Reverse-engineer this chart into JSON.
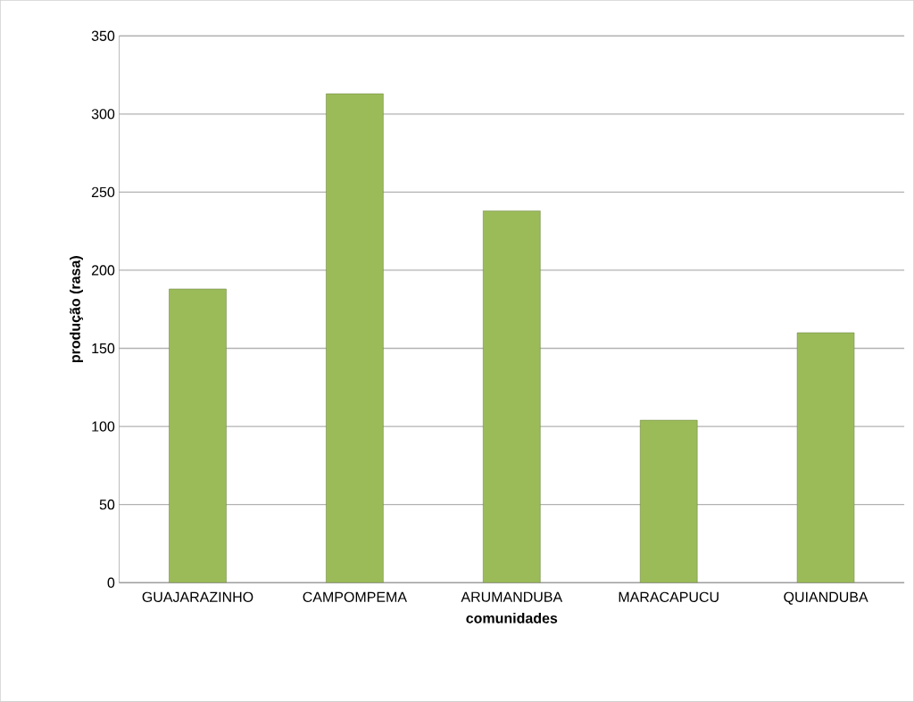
{
  "chart_data": {
    "type": "bar",
    "xlabel": "comunidades",
    "ylabel": "produção (rasa)",
    "categories": [
      "GUAJARAZINHO",
      "CAMPOMPEMA",
      "ARUMANDUBA",
      "MARACAPUCU",
      "QUIANDUBA"
    ],
    "values": [
      188,
      313,
      238,
      104,
      160
    ],
    "color": "#9bbb59",
    "ylim": [
      0,
      350
    ],
    "yticks": [
      0,
      50,
      100,
      150,
      200,
      250,
      300,
      350
    ],
    "grid": "y"
  }
}
